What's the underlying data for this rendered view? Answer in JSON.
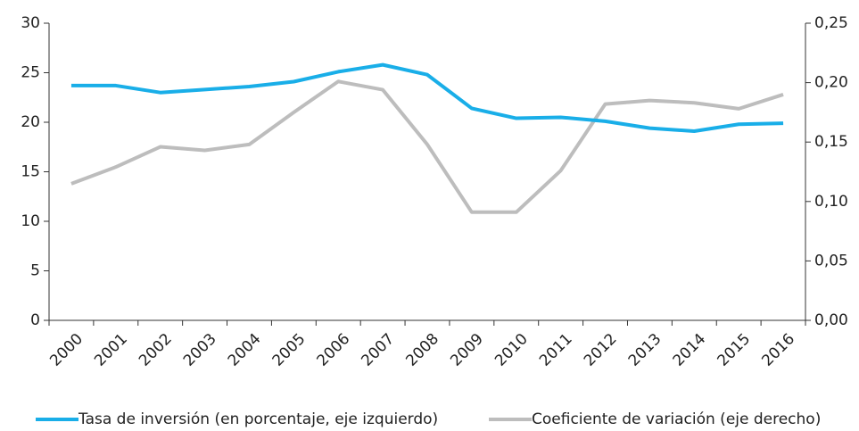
{
  "chart_data": {
    "type": "line",
    "categories": [
      "2000",
      "2001",
      "2002",
      "2003",
      "2004",
      "2005",
      "2006",
      "2007",
      "2008",
      "2009",
      "2010",
      "2011",
      "2012",
      "2013",
      "2014",
      "2015",
      "2016"
    ],
    "series": [
      {
        "name": "Tasa de inversión (en porcentaje, eje izquierdo)",
        "color": "#19aee8",
        "values": [
          23.7,
          23.7,
          23.0,
          23.3,
          23.6,
          24.1,
          25.1,
          25.8,
          24.8,
          21.4,
          20.4,
          20.5,
          20.1,
          19.4,
          19.1,
          19.8,
          19.9
        ]
      },
      {
        "name": "Coeficiente de variación (eje derecho)",
        "color": "#bdbdbd",
        "axis": "y2",
        "values": [
          0.115,
          0.129,
          0.146,
          0.143,
          0.148,
          0.175,
          0.201,
          0.194,
          0.148,
          0.091,
          0.091,
          0.126,
          0.182,
          0.185,
          0.183,
          0.178,
          0.19
        ]
      }
    ],
    "ylim": [
      0,
      30
    ],
    "yticks": [
      0,
      5,
      10,
      15,
      20,
      25,
      30
    ],
    "y2lim": [
      0,
      0.25
    ],
    "y2ticks": [
      {
        "value": 0,
        "label": "0,00"
      },
      {
        "value": 0.05,
        "label": "0,05"
      },
      {
        "value": 0.1,
        "label": "0,10"
      },
      {
        "value": 0.15,
        "label": "0,15"
      },
      {
        "value": 0.2,
        "label": "0,20"
      },
      {
        "value": 0.25,
        "label": "0,25"
      }
    ],
    "legend": "bottom"
  }
}
